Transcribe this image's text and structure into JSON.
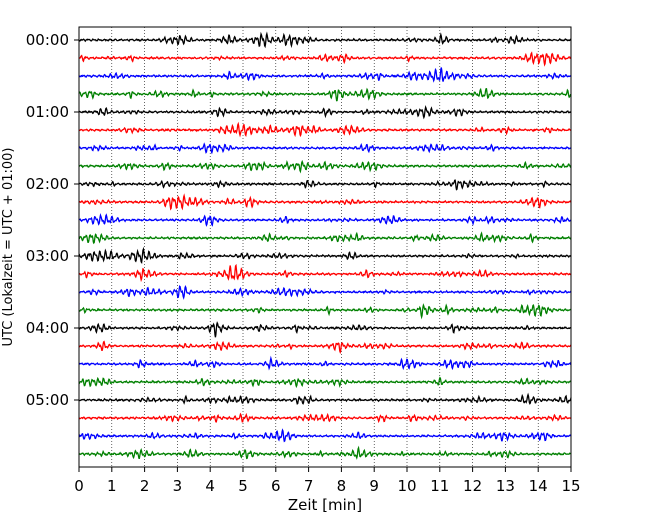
{
  "chart_data": {
    "type": "line",
    "title": "",
    "xlabel": "Zeit  [min]",
    "ylabel": "UTC (Lokalzeit = UTC + 01:00)",
    "xlim": [
      0,
      15
    ],
    "x_ticks": [
      "0",
      "1",
      "2",
      "3",
      "4",
      "5",
      "6",
      "7",
      "8",
      "9",
      "10",
      "11",
      "12",
      "13",
      "14",
      "15"
    ],
    "y_ticks": [
      {
        "label": "00:00",
        "trace_index": 0
      },
      {
        "label": "01:00",
        "trace_index": 4
      },
      {
        "label": "02:00",
        "trace_index": 8
      },
      {
        "label": "03:00",
        "trace_index": 12
      },
      {
        "label": "04:00",
        "trace_index": 16
      },
      {
        "label": "05:00",
        "trace_index": 20
      }
    ],
    "trace_interval_minutes": 15,
    "trace_count": 24,
    "trace_colors": [
      "#000000",
      "#ff0000",
      "#0000ff",
      "#008000"
    ],
    "grid": "vertical dotted lines at each minute"
  }
}
